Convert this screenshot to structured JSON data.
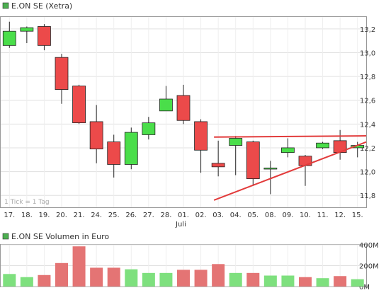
{
  "price_panel": {
    "legend_label": "E.ON SE (Xetra)",
    "legend_color": "#4caf50",
    "watermark": "1 Tick = 1 Tag",
    "month_label": "Juli"
  },
  "volume_panel": {
    "legend_label": "E.ON SE Volumen in Euro",
    "legend_color": "#4caf50"
  },
  "chart_data": [
    {
      "type": "candlestick",
      "title": "E.ON SE (Xetra)",
      "categories": [
        "17.",
        "18.",
        "19.",
        "20.",
        "21.",
        "24.",
        "25.",
        "26.",
        "27.",
        "28.",
        "01.",
        "02.",
        "03.",
        "04.",
        "05.",
        "08.",
        "09.",
        "10.",
        "11.",
        "12.",
        "15."
      ],
      "open": [
        13.06,
        13.18,
        13.22,
        12.96,
        12.72,
        12.42,
        12.25,
        12.06,
        12.31,
        12.51,
        12.64,
        12.42,
        12.07,
        12.22,
        12.25,
        12.03,
        12.16,
        12.13,
        12.2,
        12.26,
        12.2
      ],
      "close": [
        13.18,
        13.21,
        13.06,
        12.69,
        12.41,
        12.19,
        12.06,
        12.33,
        12.41,
        12.61,
        12.43,
        12.18,
        12.04,
        12.28,
        11.94,
        12.03,
        12.2,
        12.05,
        12.24,
        12.16,
        12.22
      ],
      "high": [
        13.26,
        13.22,
        13.24,
        12.99,
        12.73,
        12.56,
        12.31,
        12.37,
        12.46,
        12.72,
        12.73,
        12.44,
        12.26,
        12.3,
        12.26,
        12.09,
        12.28,
        12.14,
        12.25,
        12.35,
        12.25
      ],
      "low": [
        13.04,
        13.08,
        13.02,
        12.57,
        12.4,
        12.07,
        11.95,
        12.02,
        12.27,
        12.51,
        12.4,
        11.99,
        11.96,
        11.97,
        11.88,
        11.81,
        12.12,
        11.88,
        12.19,
        12.1,
        12.12
      ],
      "ylim": [
        11.7,
        13.3
      ],
      "yticks": [
        "11,8",
        "12,0",
        "12,2",
        "12,4",
        "12,6",
        "12,8",
        "13,0",
        "13,2"
      ],
      "ytick_values": [
        11.8,
        12.0,
        12.2,
        12.4,
        12.6,
        12.8,
        13.0,
        13.2
      ],
      "trendlines": [
        {
          "from": [
            "03.",
            12.29
          ],
          "to": [
            "15.",
            12.3
          ],
          "color": "#e23b3b"
        },
        {
          "from": [
            "03.",
            11.76
          ],
          "to": [
            "15.",
            12.22
          ],
          "color": "#e23b3b"
        }
      ],
      "up_color": "#4ade4a",
      "down_color": "#ec4a4a",
      "grid": true
    },
    {
      "type": "bar",
      "title": "E.ON SE Volumen in Euro",
      "categories": [
        "17.",
        "18.",
        "19.",
        "20.",
        "21.",
        "24.",
        "25.",
        "26.",
        "27.",
        "28.",
        "01.",
        "02.",
        "03.",
        "04.",
        "05.",
        "08.",
        "09.",
        "10.",
        "11.",
        "12.",
        "15."
      ],
      "values": [
        120,
        90,
        110,
        225,
        385,
        180,
        180,
        165,
        130,
        130,
        160,
        160,
        215,
        130,
        130,
        105,
        105,
        90,
        80,
        100,
        70
      ],
      "unit": "M",
      "ylim": [
        0,
        400
      ],
      "yticks": [
        "0M",
        "200M",
        "400M"
      ],
      "ytick_values": [
        0,
        200,
        400
      ],
      "up_color": "#7ee07e",
      "down_color": "#e47474",
      "grid": true
    }
  ]
}
